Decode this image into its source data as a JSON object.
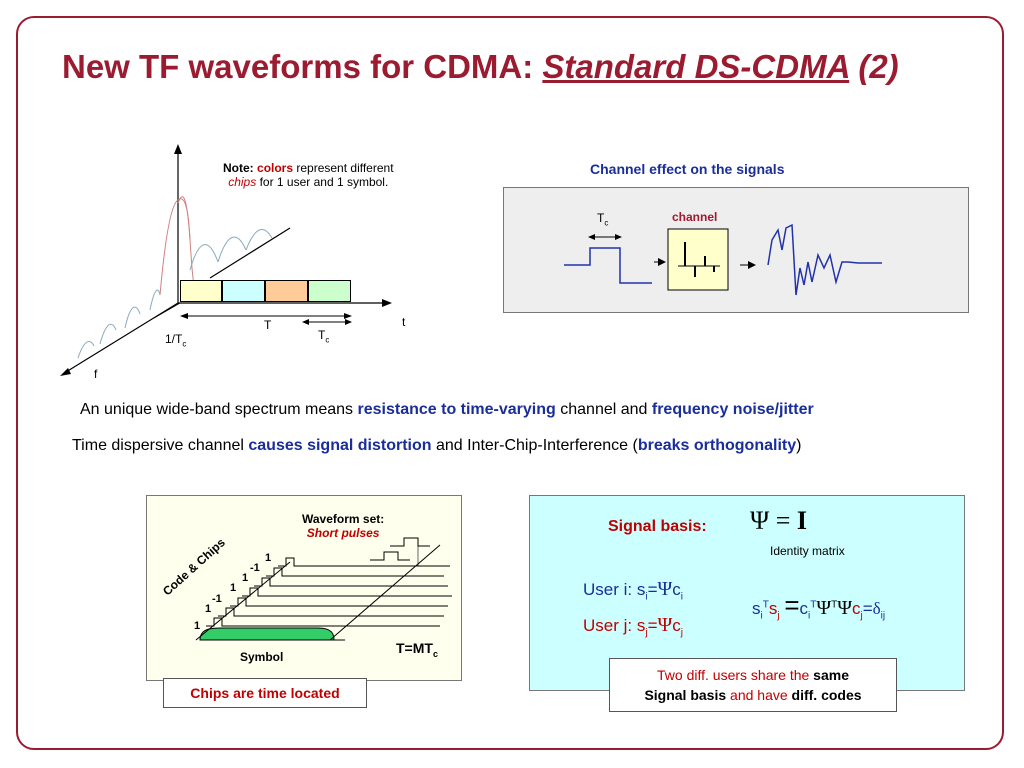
{
  "title": {
    "main": "New TF waveforms for CDMA: ",
    "underlined": "Standard DS-CDMA",
    "suffix": " (2)"
  },
  "tf_plot": {
    "note_prefix": "Note:",
    "note_colors": "colors",
    "note_mid": " represent different",
    "note_chips": "chips",
    "note_end": " for 1 user and 1 symbol.",
    "axis_t": "t",
    "axis_f": "f",
    "label_T": "T",
    "label_Tc": "T",
    "label_Tc_sub": "c",
    "label_inv": "1/T",
    "label_inv_sub": "c",
    "chip_colors": [
      "#ffffcc",
      "#ccffff",
      "#ffcc99",
      "#ccffcc"
    ]
  },
  "channel": {
    "heading": "Channel effect on the signals",
    "tc": "T",
    "tc_sub": "c",
    "channel_label": "channel"
  },
  "sentences": {
    "s1_a": "An unique wide-band spectrum means ",
    "s1_b": "resistance to time-varying",
    "s1_c": " channel and ",
    "s1_d": "frequency noise/jitter",
    "s2_a": "Time dispersive channel ",
    "s2_b": "causes signal distortion",
    "s2_c": " and Inter-Chip-Interference (",
    "s2_d": "breaks orthogonality",
    "s2_e": ")"
  },
  "waveform": {
    "set_label": "Waveform set:",
    "short_pulses": "Short pulses",
    "code_chips": "Code & Chips",
    "symbol": "Symbol",
    "tmt": "T=MT",
    "tmt_sub": "c",
    "code_values": [
      "1",
      "1",
      "-1",
      "1",
      "1",
      "-1",
      "1"
    ],
    "chips_note": "Chips are time located"
  },
  "basis": {
    "label": "Signal basis:",
    "eq_psi": "Ψ",
    "eq_eq": " = ",
    "eq_I": "I",
    "identity": "Identity matrix",
    "user_i": "User i:",
    "user_j": "User j:",
    "note_a": "Two diff. users share the ",
    "note_b": "same",
    "note_c": "Signal basis",
    "note_d": " and have ",
    "note_e": "diff. codes"
  }
}
